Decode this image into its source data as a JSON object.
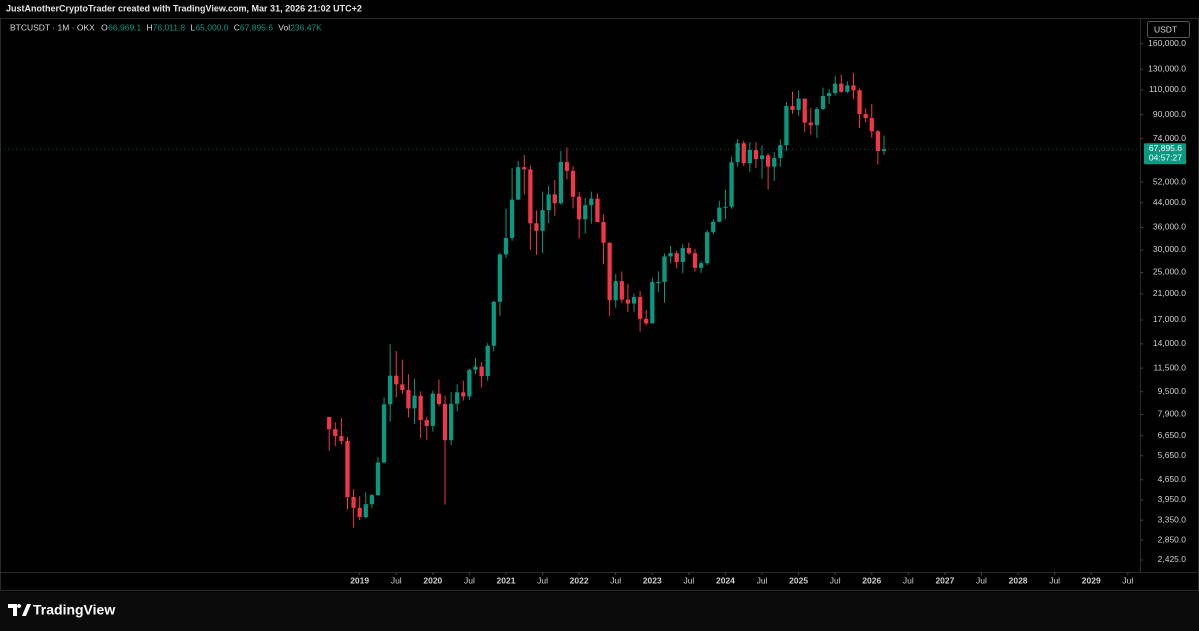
{
  "header": {
    "text": "JustAnotherCryptoTrader created with TradingView.com, Mar 31, 2026 21:02 UTC+2"
  },
  "legend": {
    "symbol": "BTCUSDT · 1M · OKX",
    "items": [
      {
        "label": "O",
        "value": "66,969.1"
      },
      {
        "label": "H",
        "value": "76,011.8"
      },
      {
        "label": "L",
        "value": "65,000.0"
      },
      {
        "label": "C",
        "value": "67,895.6"
      },
      {
        "label": "Vol",
        "value": "236.47K"
      }
    ]
  },
  "currency": "USDT",
  "last_price": {
    "value": 67895.6,
    "label": "67,895.6",
    "countdown": "04:57:27"
  },
  "footer": {
    "brand": "TradingView"
  },
  "chart_data": {
    "type": "candlestick",
    "log_scale": true,
    "up_color": "#089981",
    "down_color": "#f23645",
    "x": [
      "2018-08",
      "2018-09",
      "2018-10",
      "2018-11",
      "2018-12",
      "2019-01",
      "2019-02",
      "2019-03",
      "2019-04",
      "2019-05",
      "2019-06",
      "2019-07",
      "2019-08",
      "2019-09",
      "2019-10",
      "2019-11",
      "2019-12",
      "2020-01",
      "2020-02",
      "2020-03",
      "2020-04",
      "2020-05",
      "2020-06",
      "2020-07",
      "2020-08",
      "2020-09",
      "2020-10",
      "2020-11",
      "2020-12",
      "2021-01",
      "2021-02",
      "2021-03",
      "2021-04",
      "2021-05",
      "2021-06",
      "2021-07",
      "2021-08",
      "2021-09",
      "2021-10",
      "2021-11",
      "2021-12",
      "2022-01",
      "2022-02",
      "2022-03",
      "2022-04",
      "2022-05",
      "2022-06",
      "2022-07",
      "2022-08",
      "2022-09",
      "2022-10",
      "2022-11",
      "2022-12",
      "2023-01",
      "2023-02",
      "2023-03",
      "2023-04",
      "2023-05",
      "2023-06",
      "2023-07",
      "2023-08",
      "2023-09",
      "2023-10",
      "2023-11",
      "2023-12",
      "2024-01",
      "2024-02",
      "2024-03",
      "2024-04",
      "2024-05",
      "2024-06",
      "2024-07",
      "2024-08",
      "2024-09",
      "2024-10",
      "2024-11",
      "2024-12",
      "2025-01",
      "2025-02",
      "2025-03",
      "2025-04",
      "2025-05",
      "2025-06",
      "2025-07",
      "2025-08",
      "2025-09",
      "2025-10",
      "2025-11",
      "2025-12",
      "2026-01",
      "2026-02",
      "2026-03"
    ],
    "open": [
      7735,
      7011,
      6626,
      6370,
      4041,
      3702,
      3434,
      3813,
      4105,
      5350,
      8574,
      10817,
      10086,
      9630,
      8294,
      9200,
      7547,
      7195,
      9350,
      8600,
      6410,
      8620,
      9450,
      9140,
      11350,
      11650,
      10780,
      13800,
      19700,
      28920,
      33090,
      45140,
      58740,
      57700,
      37250,
      35040,
      41460,
      47100,
      43820,
      61300,
      56950,
      46200,
      38480,
      43160,
      45510,
      37630,
      31800,
      19940,
      23290,
      20050,
      19420,
      20490,
      17160,
      16540,
      23130,
      23140,
      28470,
      29230,
      27210,
      30470,
      29230,
      25940,
      26960,
      34640,
      37720,
      42280,
      42580,
      61130,
      71280,
      60670,
      67490,
      62680,
      64620,
      58970,
      63330,
      70220,
      96410,
      93430,
      102430,
      84350,
      82550,
      94170,
      104590,
      107140,
      115760,
      108250,
      114050,
      109600,
      90400,
      87500,
      78600,
      66969.1
    ],
    "high": [
      7760,
      7410,
      7680,
      6587,
      4312,
      4070,
      4200,
      4140,
      5600,
      9074,
      13970,
      13200,
      12330,
      10950,
      10540,
      9530,
      7750,
      9580,
      10500,
      9190,
      9470,
      10070,
      10380,
      11450,
      12470,
      12080,
      14100,
      19900,
      29300,
      41950,
      58350,
      61840,
      64850,
      59600,
      41330,
      48170,
      50500,
      52920,
      67000,
      69000,
      59100,
      48000,
      45800,
      48190,
      47440,
      40000,
      31960,
      24670,
      25200,
      22800,
      21080,
      21480,
      18390,
      23960,
      25250,
      29180,
      31000,
      29820,
      31430,
      31800,
      30250,
      27480,
      35280,
      38450,
      44730,
      48970,
      64000,
      73780,
      72800,
      71980,
      71950,
      70000,
      65660,
      66500,
      73620,
      99590,
      108350,
      109590,
      102500,
      95000,
      95760,
      111980,
      110530,
      123200,
      124470,
      117900,
      126200,
      111200,
      94600,
      97900,
      79400,
      76011.8
    ],
    "low": [
      5880,
      6111,
      6200,
      3652,
      3157,
      3350,
      3400,
      3690,
      4080,
      5320,
      7440,
      9070,
      9320,
      7710,
      7300,
      6520,
      6430,
      6870,
      8450,
      3800,
      6150,
      8100,
      8830,
      8900,
      10950,
      9820,
      10370,
      13200,
      17570,
      28130,
      32300,
      45000,
      47000,
      30000,
      28800,
      29280,
      37330,
      39600,
      43280,
      53250,
      42000,
      32900,
      34300,
      37150,
      37580,
      26700,
      17560,
      18780,
      19520,
      18120,
      18190,
      15470,
      16250,
      16500,
      21350,
      19550,
      26940,
      25810,
      24800,
      28860,
      25160,
      24900,
      26540,
      34090,
      37620,
      38550,
      41880,
      59000,
      59190,
      56550,
      58400,
      53480,
      49000,
      52550,
      58870,
      66810,
      90500,
      89160,
      78250,
      76600,
      74430,
      93340,
      98200,
      105100,
      107350,
      107250,
      102000,
      80600,
      84450,
      74600,
      60000,
      65000.0
    ],
    "close": [
      7011,
      6626,
      6371,
      4041,
      3702,
      3434,
      3813,
      4105,
      5350,
      8574,
      10817,
      10086,
      9630,
      8294,
      9200,
      7547,
      7195,
      9350,
      8600,
      6410,
      8620,
      9450,
      9140,
      11350,
      11650,
      10780,
      13800,
      19700,
      28920,
      33090,
      45140,
      58740,
      57700,
      37250,
      35040,
      41460,
      47100,
      43820,
      61300,
      56950,
      46200,
      38480,
      43160,
      45510,
      37630,
      31800,
      19940,
      23290,
      20050,
      19420,
      20490,
      17160,
      16540,
      23130,
      23140,
      28470,
      29230,
      27210,
      30470,
      29230,
      25940,
      26960,
      34640,
      37720,
      42280,
      42580,
      61130,
      71280,
      60670,
      67490,
      62680,
      64620,
      58970,
      63330,
      70220,
      96410,
      93430,
      102430,
      84350,
      82550,
      94170,
      104590,
      107140,
      115760,
      108250,
      114050,
      109600,
      90400,
      87500,
      78600,
      66970,
      67895.6
    ],
    "xlim": [
      "2014-02",
      "2029-09"
    ],
    "xticks": [
      {
        "value": "2019-01",
        "label": "2019"
      },
      {
        "value": "2019-07",
        "label": "Jul"
      },
      {
        "value": "2020-01",
        "label": "2020"
      },
      {
        "value": "2020-07",
        "label": "Jul"
      },
      {
        "value": "2021-01",
        "label": "2021"
      },
      {
        "value": "2021-07",
        "label": "Jul"
      },
      {
        "value": "2022-01",
        "label": "2022"
      },
      {
        "value": "2022-07",
        "label": "Jul"
      },
      {
        "value": "2023-01",
        "label": "2023"
      },
      {
        "value": "2023-07",
        "label": "Jul"
      },
      {
        "value": "2024-01",
        "label": "2024"
      },
      {
        "value": "2024-07",
        "label": "Jul"
      },
      {
        "value": "2025-01",
        "label": "2025"
      },
      {
        "value": "2025-07",
        "label": "Jul"
      },
      {
        "value": "2026-01",
        "label": "2026"
      },
      {
        "value": "2026-07",
        "label": "Jul"
      },
      {
        "value": "2027-01",
        "label": "2027"
      },
      {
        "value": "2027-07",
        "label": "Jul"
      },
      {
        "value": "2028-01",
        "label": "2028"
      },
      {
        "value": "2028-07",
        "label": "Jul"
      },
      {
        "value": "2029-01",
        "label": "2029"
      },
      {
        "value": "2029-07",
        "label": "Jul"
      }
    ],
    "ylim": [
      2200,
      197000
    ],
    "yticks": [
      {
        "value": 160000,
        "label": "160,000.0"
      },
      {
        "value": 130000,
        "label": "130,000.0"
      },
      {
        "value": 110000,
        "label": "110,000.0"
      },
      {
        "value": 90000,
        "label": "90,000.0"
      },
      {
        "value": 74000,
        "label": "74,000.0"
      },
      {
        "value": 52000,
        "label": "52,000.0"
      },
      {
        "value": 44000,
        "label": "44,000.0"
      },
      {
        "value": 36000,
        "label": "36,000.0"
      },
      {
        "value": 30000,
        "label": "30,000.0"
      },
      {
        "value": 25000,
        "label": "25,000.0"
      },
      {
        "value": 21000,
        "label": "21,000.0"
      },
      {
        "value": 17000,
        "label": "17,000.0"
      },
      {
        "value": 14000,
        "label": "14,000.0"
      },
      {
        "value": 11500,
        "label": "11,500.0"
      },
      {
        "value": 9500,
        "label": "9,500.0"
      },
      {
        "value": 7900,
        "label": "7,900.0"
      },
      {
        "value": 6650,
        "label": "6,650.0"
      },
      {
        "value": 5650,
        "label": "5,650.0"
      },
      {
        "value": 4650,
        "label": "4,650.0"
      },
      {
        "value": 3950,
        "label": "3,950.0"
      },
      {
        "value": 3350,
        "label": "3,350.0"
      },
      {
        "value": 2850,
        "label": "2,850.0"
      },
      {
        "value": 2425,
        "label": "2,425.0"
      }
    ]
  }
}
